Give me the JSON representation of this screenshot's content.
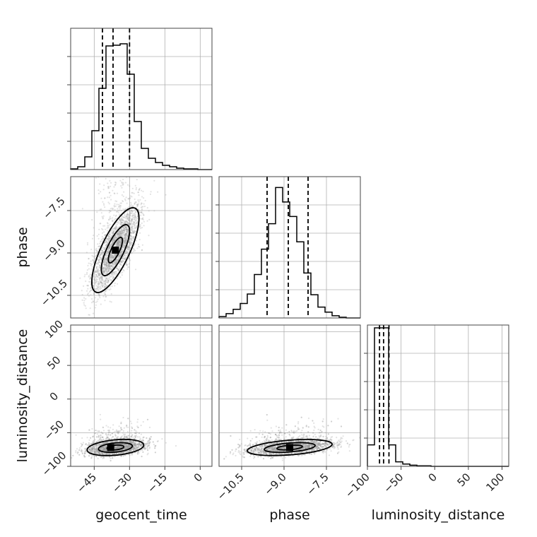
{
  "chart_data": {
    "type": "corner",
    "parameters": [
      {
        "name": "geocent_time",
        "range": [
          -55,
          5
        ],
        "ticks": [
          -45,
          -30,
          -15,
          0
        ],
        "tick_labels": [
          "−45",
          "−30",
          "−15",
          "0"
        ]
      },
      {
        "name": "phase",
        "range": [
          -11.3,
          -6.3
        ],
        "ticks": [
          -10.5,
          -9.0,
          -7.5
        ],
        "tick_labels": [
          "−10.5",
          "−9.0",
          "−7.5"
        ]
      },
      {
        "name": "luminosity_distance",
        "range": [
          -100,
          110
        ],
        "ticks": [
          -100,
          -50,
          0,
          50,
          100
        ],
        "tick_labels": [
          "−100",
          "−50",
          "0",
          "50",
          "100"
        ]
      }
    ],
    "diagonal": [
      {
        "parameter": "geocent_time",
        "bin_start": -55,
        "bin_width": 3,
        "counts": [
          1,
          4,
          18,
          55,
          115,
          175,
          176,
          178,
          135,
          68,
          30,
          16,
          10,
          6,
          4,
          2,
          1,
          1,
          0,
          0
        ],
        "ymax": 200,
        "quantiles": [
          -41.5,
          -37,
          -30
        ]
      },
      {
        "parameter": "phase",
        "bin_start": -11.3,
        "bin_width": 0.25,
        "counts": [
          2,
          6,
          12,
          20,
          33,
          60,
          95,
          130,
          180,
          160,
          140,
          105,
          62,
          32,
          15,
          8,
          3,
          1,
          0,
          0
        ],
        "ymax": 195,
        "quantiles": [
          -9.6,
          -8.85,
          -8.15
        ]
      },
      {
        "parameter": "luminosity_distance",
        "bin_start": -100,
        "bin_width": 10.5,
        "counts": [
          38,
          245,
          245,
          38,
          8,
          4,
          2,
          1,
          1,
          0,
          0,
          0,
          0,
          0,
          0,
          0,
          0,
          0,
          0,
          0
        ],
        "ymax": 250,
        "quantiles": [
          -82,
          -76,
          -68
        ]
      }
    ],
    "scatter_2d": [
      {
        "x": "geocent_time",
        "y": "phase",
        "mean": [
          -36,
          -8.9
        ],
        "sd": [
          5,
          0.75
        ],
        "rho": 0.75,
        "peak_bin": [
          -36,
          -8.9
        ]
      },
      {
        "x": "geocent_time",
        "y": "luminosity_distance",
        "mean": [
          -36,
          -72
        ],
        "sd": [
          6,
          6
        ],
        "rho": 0.3,
        "peak_bin": [
          -38,
          -72
        ]
      },
      {
        "x": "phase",
        "y": "luminosity_distance",
        "mean": [
          -8.8,
          -72
        ],
        "sd": [
          0.75,
          6
        ],
        "rho": 0.4,
        "peak_bin": [
          -8.8,
          -72
        ]
      }
    ],
    "grid": true,
    "colors": {
      "hist": "#000000",
      "points": "#9a9a9a",
      "density": [
        "#e0e0e0",
        "#b8b8b8",
        "#707070",
        "#000000"
      ]
    }
  }
}
